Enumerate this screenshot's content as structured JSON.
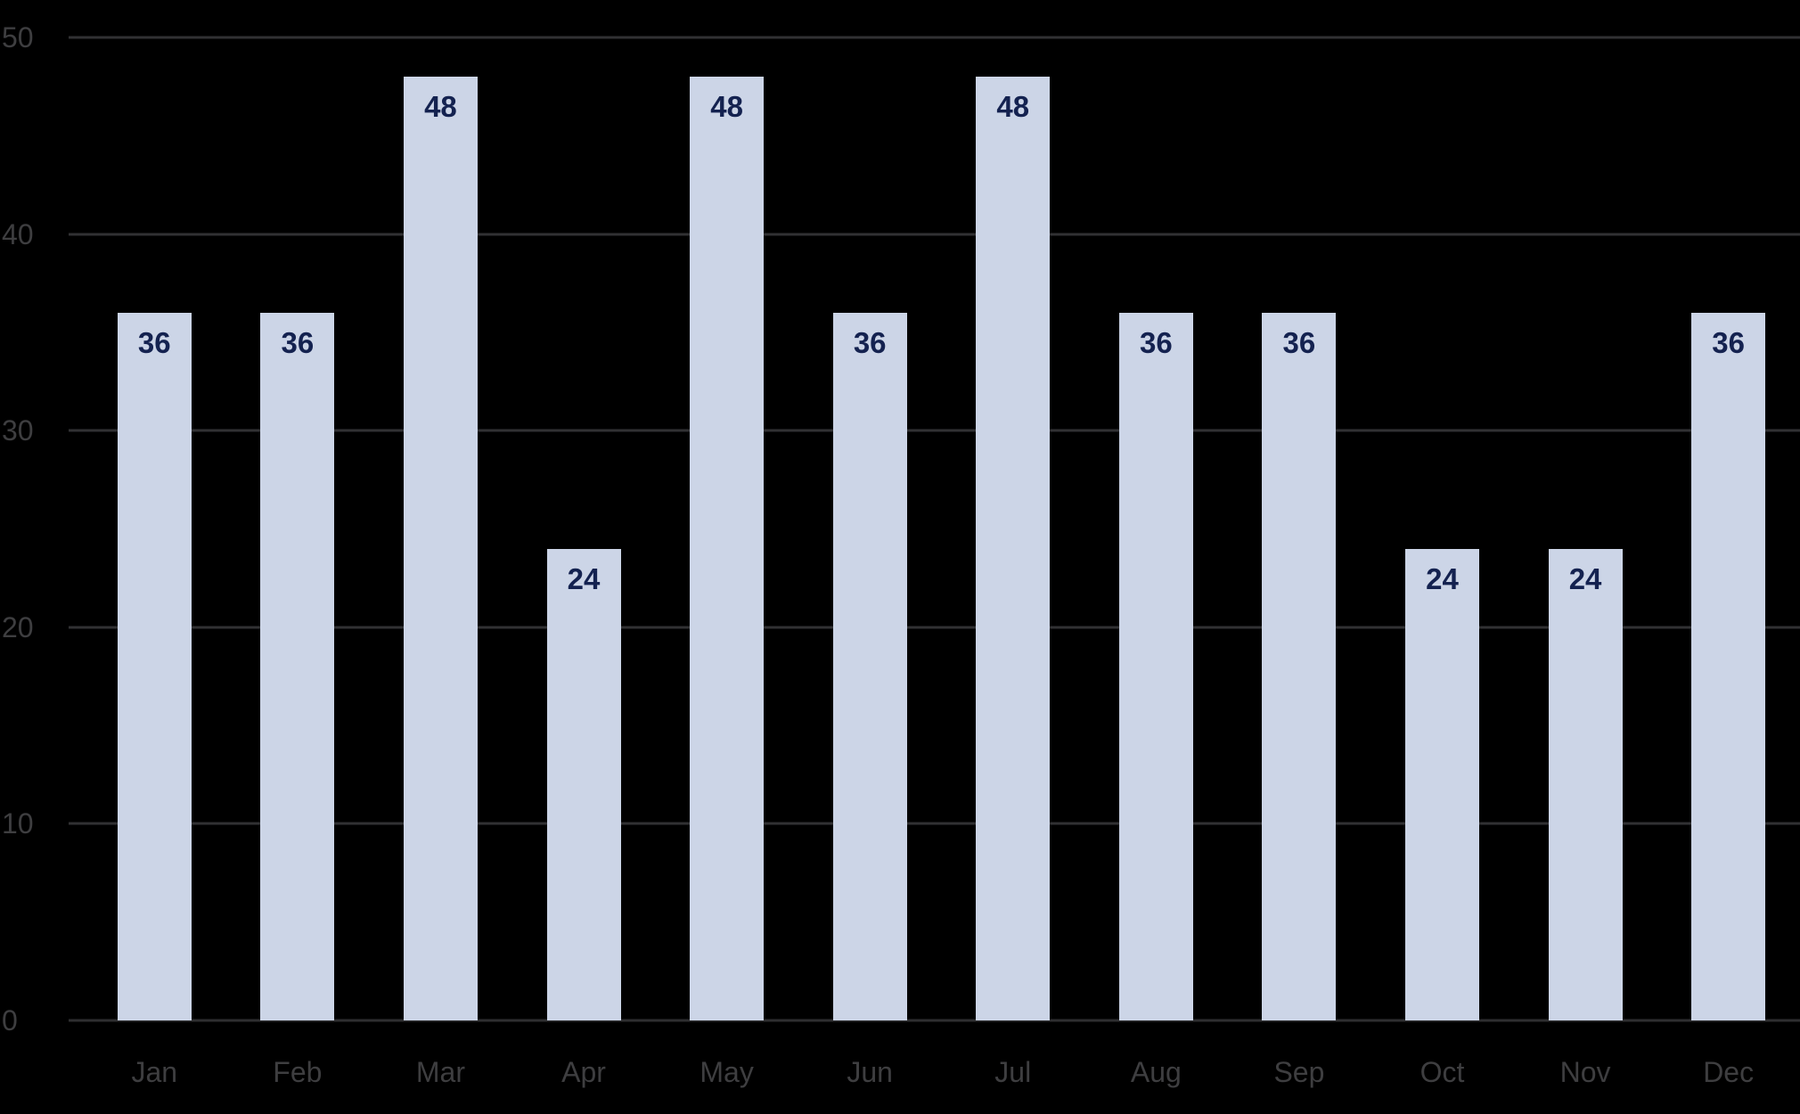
{
  "chart_data": {
    "type": "bar",
    "title": "",
    "xlabel": "",
    "ylabel": "",
    "categories": [
      "Jan",
      "Feb",
      "Mar",
      "Apr",
      "May",
      "Jun",
      "Jul",
      "Aug",
      "Sep",
      "Oct",
      "Nov",
      "Dec"
    ],
    "values": [
      36,
      36,
      48,
      24,
      48,
      36,
      48,
      36,
      36,
      24,
      24,
      36
    ],
    "data_labels": [
      "36",
      "36",
      "48",
      "24",
      "48",
      "36",
      "48",
      "36",
      "36",
      "24",
      "24",
      "36"
    ],
    "ylim": [
      0,
      50
    ],
    "yticks": [
      0,
      10,
      20,
      30,
      40,
      50
    ],
    "grid": "horizontal",
    "legend": "none",
    "colors": {
      "background": "#000000",
      "bar_fill": "#ccd5e7",
      "bar_value_label": "#142250",
      "gridline": "#313133",
      "baseline": "#2e2e30",
      "axis_label": "#3e3e40"
    }
  }
}
